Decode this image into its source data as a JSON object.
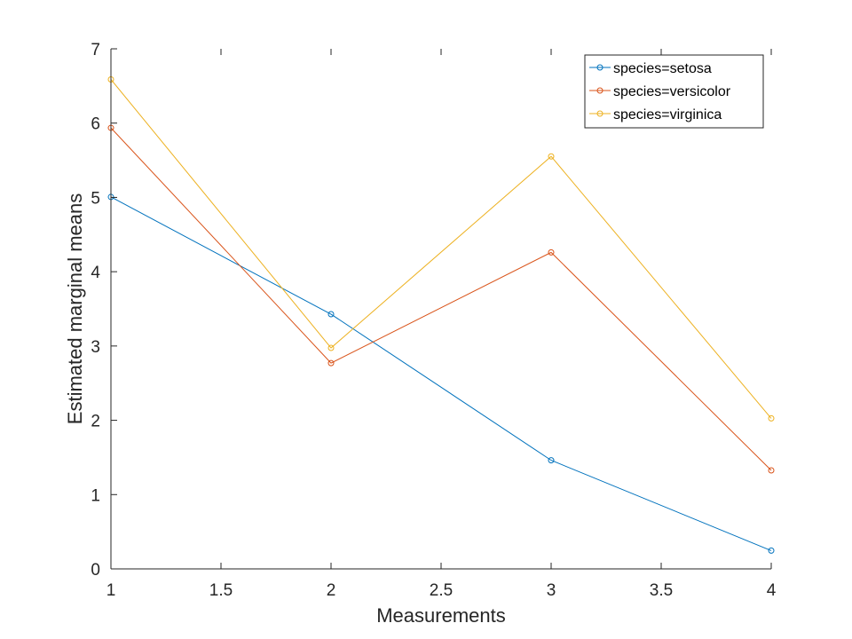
{
  "chart_data": {
    "type": "line",
    "xlabel": "Measurements",
    "ylabel": "Estimated marginal means",
    "xlim": [
      1,
      4
    ],
    "ylim": [
      0,
      7
    ],
    "xticks": [
      "1",
      "1.5",
      "2",
      "2.5",
      "3",
      "3.5",
      "4"
    ],
    "yticks": [
      "0",
      "1",
      "2",
      "3",
      "4",
      "5",
      "6",
      "7"
    ],
    "grid": false,
    "legend_position": "top-right",
    "x": [
      1,
      2,
      3,
      4
    ],
    "series": [
      {
        "name": "species=setosa",
        "color": "#0072BD",
        "values": [
          5.006,
          3.428,
          1.462,
          0.246
        ]
      },
      {
        "name": "species=versicolor",
        "color": "#D95319",
        "values": [
          5.936,
          2.77,
          4.26,
          1.326
        ]
      },
      {
        "name": "species=virginica",
        "color": "#EDB120",
        "values": [
          6.588,
          2.974,
          5.552,
          2.026
        ]
      }
    ]
  }
}
